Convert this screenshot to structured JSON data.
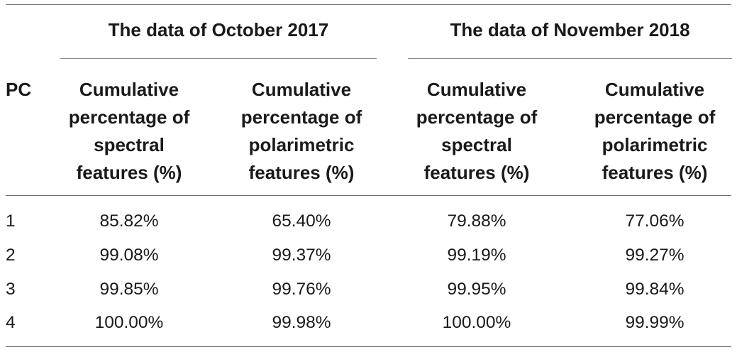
{
  "table": {
    "groups": [
      "The data of October 2017",
      "The data of November 2018"
    ],
    "header": {
      "pc": "PC",
      "columns": [
        [
          "Cumulative",
          "percentage of",
          "spectral",
          "features (%)"
        ],
        [
          "Cumulative",
          "percentage of",
          "polarimetric",
          "features (%)"
        ],
        [
          "Cumulative",
          "percentage of",
          "spectral",
          "features (%)"
        ],
        [
          "Cumulative",
          "percentage of",
          "polarimetric",
          "features (%)"
        ]
      ]
    },
    "rows": [
      [
        "1",
        "85.82%",
        "65.40%",
        "79.88%",
        "77.06%"
      ],
      [
        "2",
        "99.08%",
        "99.37%",
        "99.19%",
        "99.27%"
      ],
      [
        "3",
        "99.85%",
        "99.76%",
        "99.95%",
        "99.84%"
      ],
      [
        "4",
        "100.00%",
        "99.98%",
        "100.00%",
        "99.99%"
      ]
    ]
  }
}
